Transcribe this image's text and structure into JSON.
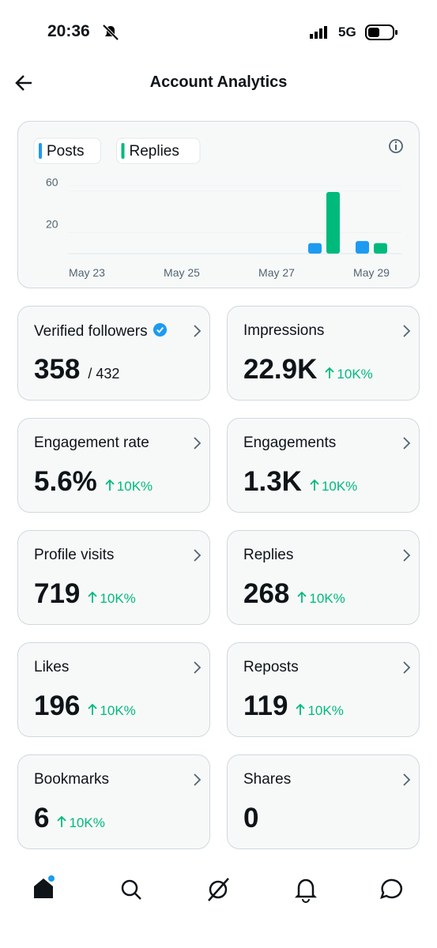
{
  "status": {
    "time": "20:36",
    "network": "5G"
  },
  "header": {
    "title": "Account Analytics"
  },
  "chart_data": {
    "type": "bar",
    "categories": [
      "May 23",
      null,
      "May 25",
      null,
      "May 27",
      null,
      "May 29"
    ],
    "series": [
      {
        "name": "Posts",
        "color": "#1d9bf0",
        "values": [
          0,
          0,
          0,
          0,
          0,
          10,
          12
        ]
      },
      {
        "name": "Replies",
        "color": "#00ba7c",
        "values": [
          0,
          0,
          0,
          0,
          0,
          59,
          10
        ]
      }
    ],
    "ylim": [
      0,
      65
    ],
    "yticks": [
      20,
      60
    ],
    "grid": true
  },
  "stats": [
    {
      "label": "Verified followers",
      "value": "358",
      "total": "/ 432",
      "verified": true
    },
    {
      "label": "Impressions",
      "value": "22.9K",
      "change": "10K%"
    },
    {
      "label": "Engagement rate",
      "value": "5.6%",
      "change": "10K%"
    },
    {
      "label": "Engagements",
      "value": "1.3K",
      "change": "10K%"
    },
    {
      "label": "Profile visits",
      "value": "719",
      "change": "10K%"
    },
    {
      "label": "Replies",
      "value": "268",
      "change": "10K%"
    },
    {
      "label": "Likes",
      "value": "196",
      "change": "10K%"
    },
    {
      "label": "Reposts",
      "value": "119",
      "change": "10K%"
    },
    {
      "label": "Bookmarks",
      "value": "6",
      "change": "10K%"
    },
    {
      "label": "Shares",
      "value": "0"
    }
  ]
}
